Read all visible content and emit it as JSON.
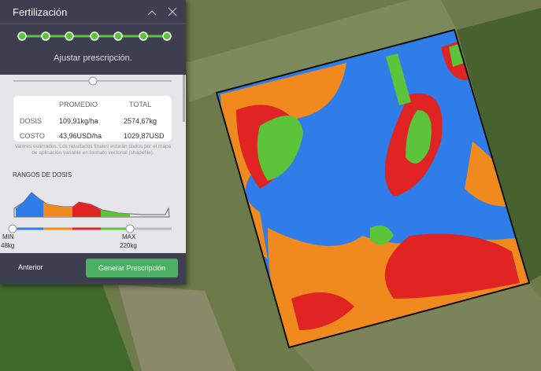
{
  "panel": {
    "title": "Fertilización",
    "step": "Ajustar prescripción.",
    "table": {
      "headers": [
        "PROMEDIO",
        "TOTAL"
      ],
      "rows": [
        [
          "DOSIS",
          "109,91kg/ha",
          "2574,67kg"
        ],
        [
          "COSTO",
          "43,96USD/ha",
          "1029,87USD"
        ]
      ]
    },
    "note": "Valores estimados. Los resultados finales estarán dados por el mapa de aplicación variable en formato vectorial (shapefile).",
    "ranges_title": "RANGOS DE DOSIS",
    "min_label": "MIN",
    "min_value": "48kg",
    "max_label": "MAX",
    "max_value": "220kg",
    "buttons": {
      "previous": "Anterior",
      "generate": "Generar Prescripción"
    }
  }
}
